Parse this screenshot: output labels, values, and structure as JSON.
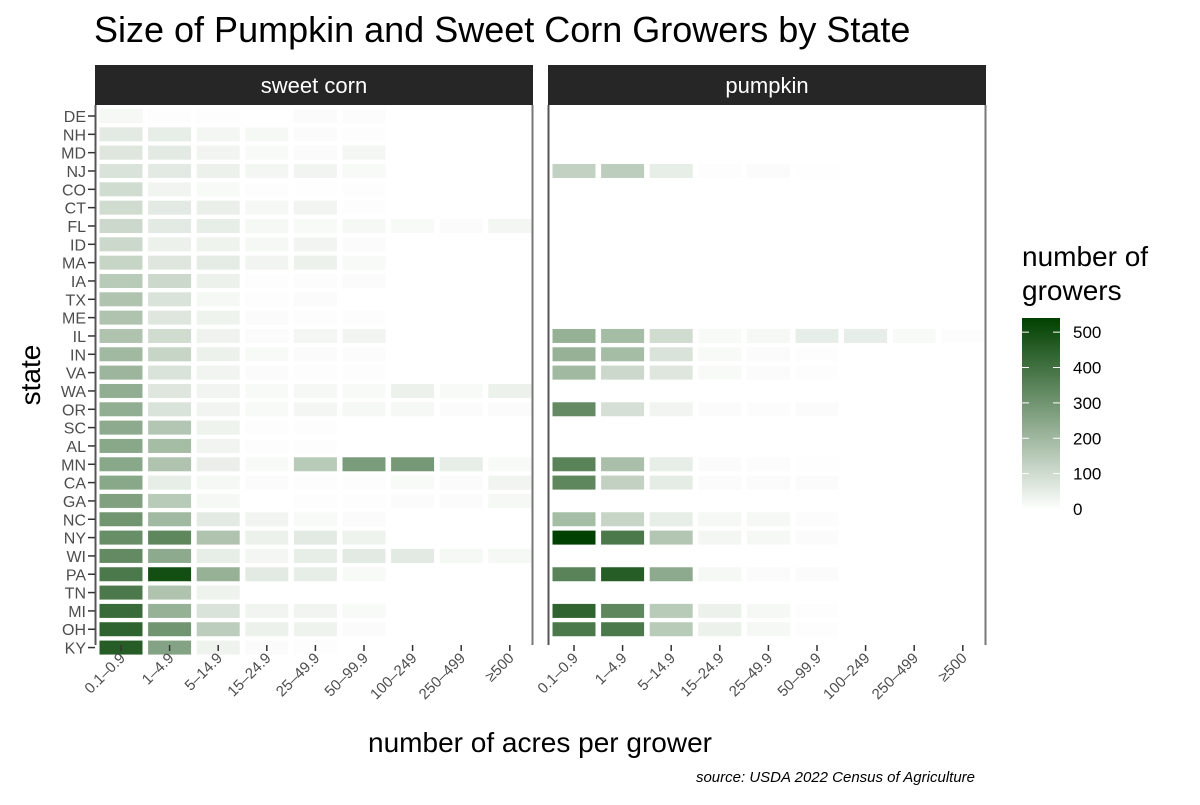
{
  "chart_data": {
    "type": "heatmap",
    "title": "Size of Pumpkin and Sweet Corn Growers by State",
    "xlabel": "number of acres per grower",
    "ylabel": "state",
    "caption": "source: USDA 2022 Census of Agriculture",
    "legend": {
      "title_lines": [
        "number of",
        "growers"
      ],
      "ticks": [
        0,
        100,
        200,
        300,
        400,
        500
      ],
      "range": [
        0,
        540
      ],
      "low_color": "#ffffff",
      "high_color": "#004000",
      "placement": "right"
    },
    "x_categories": [
      "0.1–0.9",
      "1–4.9",
      "5–14.9",
      "15–24.9",
      "25–49.9",
      "50–99.9",
      "100–249",
      "250–499",
      "≥500"
    ],
    "y_categories": [
      "DE",
      "NH",
      "MD",
      "NJ",
      "CO",
      "CT",
      "FL",
      "ID",
      "MA",
      "IA",
      "TX",
      "ME",
      "IL",
      "IN",
      "VA",
      "WA",
      "OR",
      "SC",
      "AL",
      "MN",
      "CA",
      "GA",
      "NC",
      "NY",
      "WI",
      "PA",
      "TN",
      "MI",
      "OH",
      "KY"
    ],
    "panels": [
      {
        "name": "sweet corn",
        "values": {
          "DE": [
            20,
            5,
            5,
            null,
            10,
            8,
            null,
            null,
            null
          ],
          "NH": [
            60,
            50,
            25,
            20,
            10,
            5,
            null,
            null,
            null
          ],
          "MD": [
            70,
            60,
            30,
            15,
            10,
            25,
            null,
            null,
            null
          ],
          "NJ": [
            80,
            60,
            40,
            25,
            30,
            15,
            null,
            null,
            null
          ],
          "CO": [
            100,
            30,
            15,
            5,
            3,
            5,
            null,
            null,
            null
          ],
          "CT": [
            100,
            60,
            45,
            20,
            30,
            5,
            null,
            null,
            null
          ],
          "FL": [
            110,
            60,
            50,
            20,
            15,
            20,
            15,
            10,
            25
          ],
          "ID": [
            110,
            40,
            35,
            20,
            30,
            10,
            null,
            null,
            null
          ],
          "MA": [
            120,
            70,
            55,
            30,
            40,
            15,
            null,
            null,
            null
          ],
          "IA": [
            150,
            110,
            40,
            5,
            8,
            10,
            null,
            null,
            null
          ],
          "TX": [
            170,
            80,
            20,
            5,
            10,
            null,
            null,
            null,
            null
          ],
          "ME": [
            170,
            70,
            35,
            10,
            5,
            5,
            null,
            null,
            null
          ],
          "IL": [
            170,
            100,
            35,
            10,
            25,
            30,
            null,
            null,
            null
          ],
          "IN": [
            200,
            120,
            40,
            15,
            10,
            8,
            null,
            null,
            null
          ],
          "VA": [
            210,
            80,
            30,
            10,
            5,
            5,
            null,
            null,
            null
          ],
          "WA": [
            230,
            70,
            30,
            15,
            20,
            15,
            40,
            15,
            40
          ],
          "OR": [
            230,
            80,
            30,
            15,
            25,
            20,
            20,
            10,
            10
          ],
          "SC": [
            240,
            160,
            35,
            5,
            5,
            null,
            null,
            null,
            null
          ],
          "AL": [
            250,
            190,
            30,
            5,
            5,
            null,
            null,
            null,
            null
          ],
          "MN": [
            250,
            170,
            45,
            15,
            150,
            280,
            290,
            50,
            15
          ],
          "CA": [
            250,
            50,
            20,
            10,
            5,
            5,
            15,
            10,
            30
          ],
          "GA": [
            270,
            150,
            20,
            null,
            5,
            5,
            10,
            10,
            20
          ],
          "NC": [
            300,
            200,
            60,
            30,
            15,
            10,
            null,
            null,
            null
          ],
          "NY": [
            320,
            340,
            170,
            40,
            60,
            35,
            null,
            null,
            null
          ],
          "WI": [
            330,
            240,
            50,
            25,
            50,
            60,
            60,
            20,
            20
          ],
          "PA": [
            380,
            500,
            220,
            60,
            50,
            15,
            null,
            null,
            null
          ],
          "TN": [
            380,
            170,
            35,
            null,
            null,
            null,
            null,
            null,
            null
          ],
          "MI": [
            420,
            220,
            80,
            30,
            30,
            15,
            null,
            null,
            null
          ],
          "OH": [
            440,
            300,
            140,
            40,
            35,
            10,
            null,
            null,
            null
          ],
          "KY": [
            460,
            260,
            35,
            10,
            5,
            null,
            null,
            null,
            null
          ]
        }
      },
      {
        "name": "pumpkin",
        "values": {
          "NJ": [
            130,
            140,
            50,
            5,
            10,
            3,
            null,
            null,
            null
          ],
          "IL": [
            220,
            190,
            100,
            15,
            20,
            50,
            50,
            15,
            5
          ],
          "IN": [
            220,
            190,
            80,
            15,
            10,
            5,
            null,
            null,
            null
          ],
          "VA": [
            200,
            110,
            70,
            15,
            10,
            5,
            null,
            null,
            null
          ],
          "OR": [
            330,
            90,
            30,
            10,
            8,
            10,
            null,
            null,
            null
          ],
          "MN": [
            350,
            180,
            50,
            10,
            8,
            3,
            null,
            null,
            null
          ],
          "CA": [
            340,
            130,
            55,
            10,
            10,
            10,
            null,
            null,
            null
          ],
          "NC": [
            190,
            120,
            50,
            20,
            20,
            8,
            null,
            null,
            null
          ],
          "NY": [
            540,
            380,
            160,
            25,
            20,
            10,
            null,
            null,
            null
          ],
          "PA": [
            350,
            460,
            240,
            20,
            10,
            10,
            null,
            null,
            null
          ],
          "MI": [
            440,
            340,
            150,
            40,
            20,
            5,
            null,
            null,
            null
          ],
          "OH": [
            380,
            380,
            150,
            40,
            20,
            5,
            null,
            null,
            null
          ]
        }
      }
    ]
  }
}
